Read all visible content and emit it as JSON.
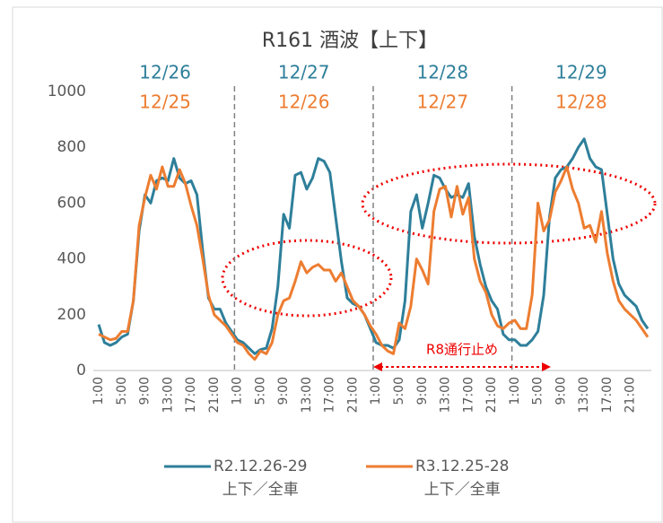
{
  "chart_data": {
    "type": "line",
    "title": "R161 酒波【上下】",
    "categories": [
      "1:00",
      null,
      null,
      null,
      "5:00",
      null,
      null,
      null,
      "9:00",
      null,
      null,
      null,
      "13:00",
      null,
      null,
      null,
      "17:00",
      null,
      null,
      null,
      "21:00",
      null,
      null,
      null,
      "1:00",
      null,
      null,
      null,
      "5:00",
      null,
      null,
      null,
      "9:00",
      null,
      null,
      null,
      "13:00",
      null,
      null,
      null,
      "17:00",
      null,
      null,
      null,
      "21:00",
      null,
      null,
      null,
      "1:00",
      null,
      null,
      null,
      "5:00",
      null,
      null,
      null,
      "9:00",
      null,
      null,
      null,
      "13:00",
      null,
      null,
      null,
      "17:00",
      null,
      null,
      null,
      "21:00",
      null,
      null,
      null,
      "1:00",
      null,
      null,
      null,
      "5:00",
      null,
      null,
      null,
      "9:00",
      null,
      null,
      null,
      "13:00",
      null,
      null,
      null,
      "17:00",
      null,
      null,
      null,
      "21:00",
      null,
      null,
      null
    ],
    "series": [
      {
        "name": "R2.12.26-29\n上下／全車",
        "color": "#2e7f9a",
        "values": [
          165,
          100,
          90,
          100,
          120,
          130,
          250,
          500,
          630,
          600,
          680,
          690,
          680,
          760,
          690,
          670,
          680,
          630,
          430,
          260,
          220,
          220,
          170,
          140,
          110,
          100,
          80,
          60,
          75,
          80,
          150,
          300,
          560,
          510,
          700,
          710,
          650,
          690,
          760,
          750,
          710,
          550,
          390,
          260,
          240,
          230,
          200,
          150,
          100,
          90,
          90,
          80,
          110,
          250,
          570,
          630,
          510,
          600,
          700,
          690,
          650,
          620,
          630,
          620,
          670,
          480,
          380,
          300,
          250,
          220,
          130,
          110,
          110,
          90,
          90,
          110,
          140,
          270,
          550,
          690,
          720,
          730,
          760,
          800,
          830,
          760,
          730,
          720,
          560,
          400,
          310,
          270,
          250,
          230,
          180,
          150
        ]
      },
      {
        "name": "R3.12.25-28\n上下／全車",
        "color": "#ed7d31",
        "values": [
          130,
          120,
          110,
          115,
          140,
          140,
          250,
          520,
          620,
          700,
          650,
          730,
          660,
          660,
          720,
          670,
          590,
          520,
          400,
          270,
          200,
          180,
          160,
          130,
          100,
          90,
          60,
          40,
          70,
          60,
          100,
          200,
          250,
          260,
          320,
          390,
          350,
          370,
          380,
          360,
          360,
          320,
          350,
          300,
          250,
          230,
          200,
          160,
          130,
          90,
          70,
          60,
          170,
          150,
          230,
          400,
          360,
          310,
          570,
          650,
          660,
          550,
          660,
          560,
          620,
          400,
          320,
          280,
          200,
          160,
          150,
          170,
          180,
          150,
          150,
          270,
          600,
          500,
          540,
          640,
          680,
          730,
          650,
          600,
          510,
          520,
          460,
          570,
          420,
          320,
          250,
          220,
          200,
          180,
          150,
          120
        ]
      }
    ],
    "ylim": [
      0,
      1000
    ],
    "yticks": [
      0,
      200,
      400,
      600,
      800,
      1000
    ],
    "grid": false,
    "annotations": {
      "dates_r2": [
        "12/26",
        "12/27",
        "12/28",
        "12/29"
      ],
      "dates_r3": [
        "12/25",
        "12/26",
        "12/27",
        "12/28"
      ],
      "closure": "R8通行止め"
    }
  }
}
